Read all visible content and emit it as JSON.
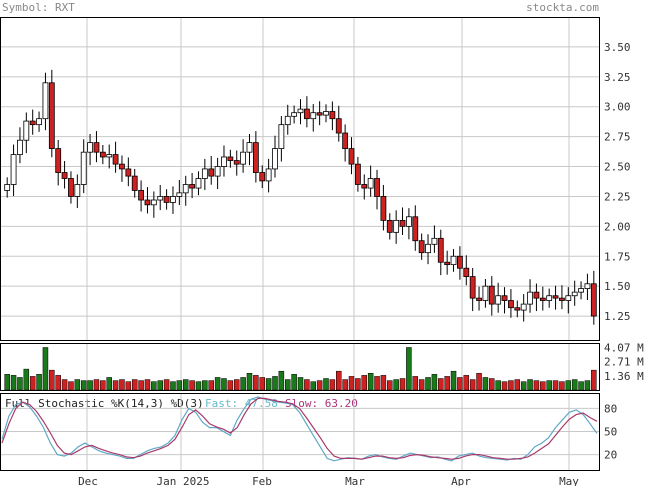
{
  "header": {
    "symbol_label": "Symbol: RXT",
    "site_label": "stockta.com"
  },
  "colors": {
    "up": "#ffffff",
    "down": "#cc2222",
    "vol_up": "#1a7a1a",
    "vol_down": "#cc2222",
    "grid": "#c8c8c8",
    "fast": "#5fa8c8",
    "slow": "#a83a6a",
    "text_gray": "#888888",
    "fast_label": "#66bbcc",
    "slow_label": "#aa3377"
  },
  "chart_data": [
    {
      "type": "candlestick",
      "x_labels": [
        "Dec",
        "Jan 2025",
        "Feb",
        "Mar",
        "Apr",
        "May"
      ],
      "y_ticks": [
        3.5,
        3.25,
        3.0,
        2.75,
        2.5,
        2.25,
        2.0,
        1.75,
        1.5,
        1.25
      ],
      "y_tick_labels": [
        "3.50",
        "3.25",
        "3.00",
        "2.75",
        "2.50",
        "2.25",
        "2.00",
        "1.75",
        "1.50",
        "1.25"
      ],
      "ylim": [
        1.05,
        3.75
      ],
      "grid": true,
      "closes": [
        2.35,
        2.6,
        2.72,
        2.88,
        2.85,
        2.9,
        3.2,
        2.65,
        2.45,
        2.4,
        2.25,
        2.35,
        2.62,
        2.7,
        2.62,
        2.58,
        2.6,
        2.52,
        2.48,
        2.42,
        2.3,
        2.22,
        2.18,
        2.22,
        2.25,
        2.2,
        2.25,
        2.28,
        2.35,
        2.32,
        2.4,
        2.48,
        2.42,
        2.5,
        2.58,
        2.55,
        2.52,
        2.62,
        2.7,
        2.45,
        2.38,
        2.48,
        2.65,
        2.85,
        2.92,
        2.95,
        2.98,
        2.9,
        2.95,
        2.93,
        2.96,
        2.9,
        2.78,
        2.65,
        2.52,
        2.35,
        2.32,
        2.4,
        2.25,
        2.05,
        1.95,
        2.05,
        2.0,
        2.08,
        1.88,
        1.78,
        1.85,
        1.9,
        1.7,
        1.68,
        1.75,
        1.65,
        1.58,
        1.4,
        1.38,
        1.5,
        1.35,
        1.42,
        1.38,
        1.32,
        1.3,
        1.35,
        1.45,
        1.4,
        1.38,
        1.42,
        1.4,
        1.38,
        1.42,
        1.45,
        1.48,
        1.52,
        1.25
      ],
      "volume_ticks": [
        "4.07 M",
        "2.71 M",
        "1.36 M"
      ],
      "volumes_m": [
        1.5,
        1.4,
        1.2,
        2.0,
        1.3,
        1.5,
        4.07,
        1.9,
        1.4,
        1.0,
        0.8,
        1.0,
        0.9,
        0.9,
        1.0,
        0.9,
        1.2,
        0.9,
        1.0,
        0.8,
        1.0,
        0.9,
        1.0,
        0.8,
        0.9,
        1.0,
        0.8,
        0.9,
        1.0,
        0.9,
        0.8,
        0.9,
        0.9,
        1.2,
        1.1,
        0.9,
        1.0,
        1.2,
        1.6,
        1.4,
        1.2,
        1.1,
        1.3,
        1.8,
        1.0,
        1.5,
        1.2,
        1.0,
        0.8,
        0.9,
        1.1,
        1.0,
        1.8,
        1.0,
        1.3,
        1.1,
        1.4,
        1.6,
        1.3,
        1.4,
        0.9,
        1.0,
        1.1,
        4.07,
        1.3,
        1.0,
        1.2,
        1.5,
        1.1,
        1.3,
        1.8,
        1.2,
        1.4,
        1.0,
        1.6,
        1.2,
        1.1,
        0.9,
        0.8,
        0.9,
        1.0,
        0.8,
        1.0,
        0.9,
        0.8,
        0.9,
        0.9,
        0.8,
        0.9,
        1.0,
        0.8,
        0.9,
        1.9
      ],
      "volume_ylim": [
        0,
        4.5
      ]
    },
    {
      "type": "line",
      "title": "Full Stochastic %K(14,3) %D(3)",
      "fast_label": "Fast: 47.58",
      "slow_label": "Slow: 63.20",
      "y_ticks": [
        80,
        50,
        20
      ],
      "ylim": [
        0,
        100
      ],
      "fast": [
        40,
        70,
        85,
        88,
        82,
        70,
        55,
        35,
        20,
        18,
        22,
        30,
        35,
        30,
        25,
        22,
        20,
        18,
        15,
        15,
        20,
        25,
        28,
        30,
        35,
        45,
        65,
        80,
        75,
        62,
        55,
        55,
        50,
        45,
        65,
        80,
        92,
        95,
        92,
        90,
        88,
        87,
        85,
        75,
        60,
        45,
        30,
        15,
        12,
        14,
        16,
        15,
        14,
        18,
        20,
        17,
        15,
        14,
        18,
        22,
        20,
        18,
        16,
        17,
        14,
        12,
        18,
        20,
        22,
        18,
        16,
        15,
        14,
        13,
        15,
        14,
        20,
        30,
        35,
        42,
        55,
        65,
        75,
        78,
        72,
        60,
        47.58
      ],
      "slow": [
        35,
        60,
        80,
        88,
        85,
        76,
        63,
        48,
        32,
        22,
        20,
        25,
        30,
        32,
        28,
        25,
        22,
        20,
        17,
        16,
        18,
        22,
        25,
        28,
        32,
        40,
        55,
        72,
        78,
        70,
        60,
        56,
        53,
        48,
        55,
        72,
        86,
        93,
        93,
        91,
        89,
        88,
        86,
        80,
        68,
        55,
        42,
        28,
        18,
        15,
        15,
        15,
        14,
        16,
        18,
        18,
        16,
        15,
        16,
        19,
        20,
        19,
        17,
        16,
        15,
        14,
        15,
        18,
        20,
        20,
        18,
        16,
        15,
        14,
        14,
        15,
        17,
        22,
        28,
        34,
        45,
        56,
        66,
        72,
        74,
        68,
        63.2
      ]
    }
  ]
}
